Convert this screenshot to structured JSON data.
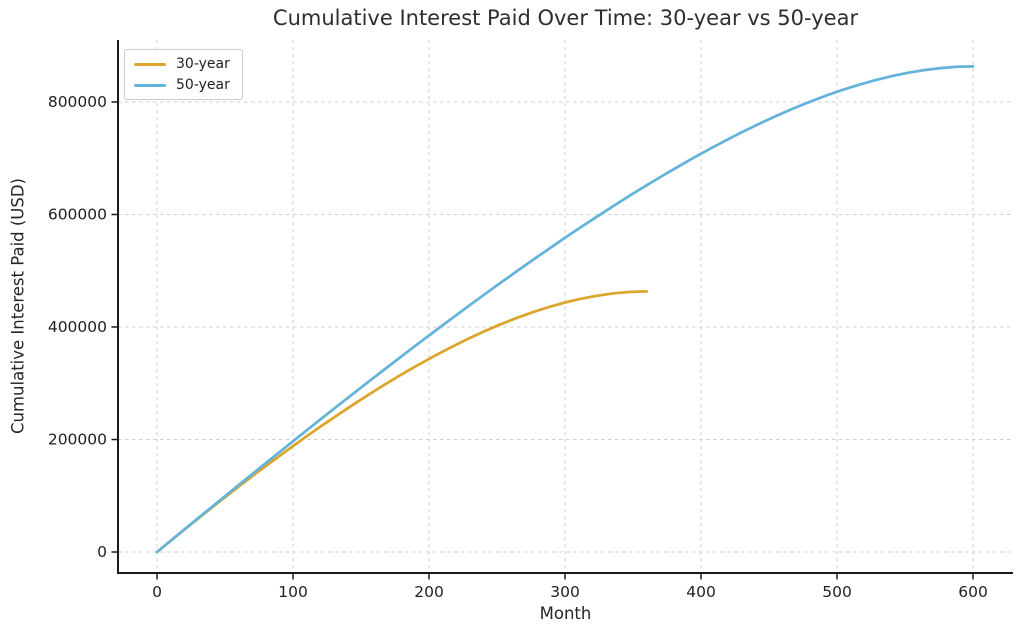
{
  "chart_data": {
    "type": "line",
    "title": "Cumulative Interest Paid Over Time: 30-year vs 50-year",
    "xlabel": "Month",
    "ylabel": "Cumulative Interest Paid (USD)",
    "x_ticks": [
      0,
      100,
      200,
      300,
      400,
      500,
      600
    ],
    "y_ticks": [
      0,
      200000,
      400000,
      600000,
      800000
    ],
    "xlim": [
      -28.7,
      629.4
    ],
    "ylim": [
      -37300,
      910200
    ],
    "grid": true,
    "grid_color": "#d0d0d0",
    "axis_color": "#1a1a1a",
    "legend": {
      "position": "upper left"
    },
    "series": [
      {
        "name": "30-year",
        "color": "#DCA62D",
        "x": [
          0,
          12,
          24,
          36,
          48,
          60,
          72,
          84,
          96,
          108,
          120,
          132,
          144,
          156,
          168,
          180,
          192,
          204,
          216,
          228,
          240,
          252,
          264,
          276,
          288,
          300,
          312,
          324,
          336,
          348,
          360
        ],
        "y": [
          0,
          23866,
          47430,
          70671,
          93572,
          116110,
          138262,
          160007,
          181317,
          202167,
          222527,
          242369,
          261659,
          280364,
          298448,
          315872,
          332596,
          348576,
          363767,
          378120,
          391583,
          404102,
          415618,
          426069,
          435389,
          443510,
          450356,
          455850,
          459907,
          462440,
          463354
        ]
      },
      {
        "name": "50-year",
        "color": "#64B3DB",
        "x": [
          0,
          12,
          24,
          36,
          48,
          60,
          72,
          84,
          96,
          108,
          120,
          132,
          144,
          156,
          168,
          180,
          192,
          204,
          216,
          228,
          240,
          252,
          264,
          276,
          288,
          300,
          312,
          324,
          336,
          348,
          360,
          372,
          384,
          396,
          408,
          420,
          432,
          444,
          456,
          468,
          480,
          492,
          504,
          516,
          528,
          540,
          552,
          564,
          576,
          588,
          600
        ],
        "y": [
          0,
          23965,
          47849,
          71648,
          95356,
          118968,
          142478,
          165880,
          189166,
          212331,
          235366,
          258262,
          281013,
          303609,
          326040,
          348295,
          370365,
          392238,
          413902,
          435343,
          456548,
          477503,
          498191,
          518598,
          538704,
          558492,
          577942,
          597033,
          615744,
          634050,
          651926,
          669347,
          686283,
          702706,
          718583,
          733881,
          748563,
          762593,
          775930,
          788531,
          800351,
          811341,
          821450,
          830625,
          838807,
          845935,
          851945,
          856766,
          860326,
          862548,
          863348
        ]
      }
    ]
  }
}
